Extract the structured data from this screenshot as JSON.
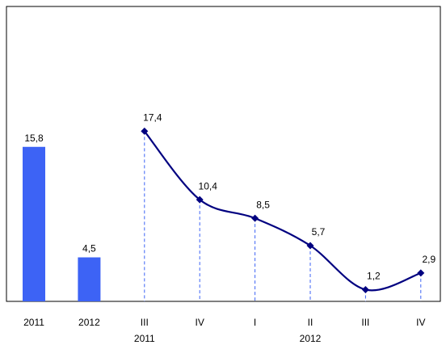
{
  "chart_data": {
    "type": "bar-line",
    "categories": [
      "2011",
      "2012",
      "III",
      "IV",
      "I",
      "II",
      "III",
      "IV"
    ],
    "subcategories": [
      null,
      null,
      "2011",
      null,
      null,
      "2012",
      null,
      null
    ],
    "series": [
      {
        "type": "bar",
        "color": "#3d63f5",
        "values": [
          15.8,
          4.5,
          null,
          null,
          null,
          null,
          null,
          null
        ],
        "value_labels": [
          "15,8",
          "4,5",
          null,
          null,
          null,
          null,
          null,
          null
        ]
      },
      {
        "type": "line",
        "color": "#000080",
        "values": [
          null,
          null,
          17.4,
          10.4,
          8.5,
          5.7,
          1.2,
          2.9
        ],
        "value_labels": [
          null,
          null,
          "17,4",
          "10,4",
          "8,5",
          "5,7",
          "1,2",
          "2,9"
        ]
      }
    ],
    "ylim": [
      0,
      29
    ]
  }
}
